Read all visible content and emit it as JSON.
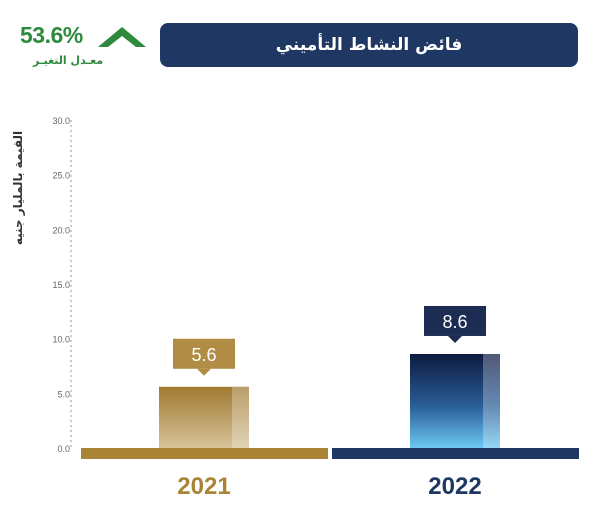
{
  "header": {
    "title": "فائض النشاط التأميني",
    "change_value": "53.6%",
    "change_label": "معـدل التغيـر",
    "change_direction": "up",
    "change_color": "#2e8a3c",
    "title_bg": "#1f3763"
  },
  "chart_data": {
    "type": "bar",
    "ylabel": "القيمة بالمليار جنيه",
    "ylim": [
      0,
      30
    ],
    "y_ticks": [
      "0.0",
      "5.0",
      "10.0",
      "15.0",
      "20.0",
      "25.0",
      "30.0"
    ],
    "grid": false,
    "categories": [
      "2021",
      "2022"
    ],
    "values": [
      5.6,
      8.6
    ],
    "value_labels": [
      "5.6",
      "8.6"
    ],
    "colors": [
      "#a98336",
      "#1f3763"
    ]
  }
}
